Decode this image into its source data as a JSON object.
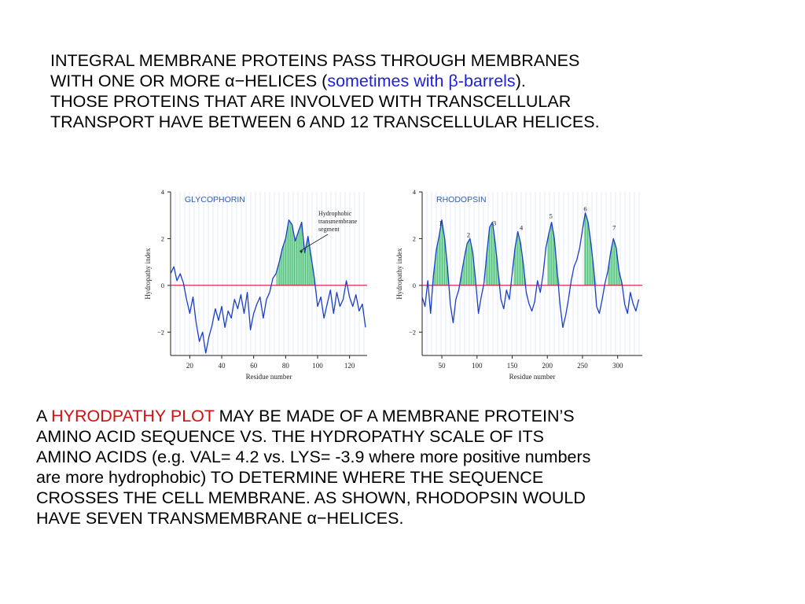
{
  "top_text": {
    "line1": "INTEGRAL MEMBRANE PROTEINS PASS THROUGH MEMBRANES",
    "line2_pre": "WITH ONE OR MORE ",
    "alpha_helices": "α−HELICES",
    "paren_open": " (",
    "sometimes_with": "sometimes with β-barrels",
    "paren_close": ").",
    "line3": "THOSE PROTEINS THAT ARE INVOLVED WITH TRANSCELLULAR",
    "line4": "TRANSPORT HAVE BETWEEN 6 AND 12 TRANSCELLULAR HELICES."
  },
  "bottom_text": {
    "prefix": "A ",
    "highlight": "HYRODPATHY PLOT",
    "line1_rest": " MAY BE MADE OF A MEMBRANE PROTEIN’S",
    "line2": "AMINO ACID SEQUENCE VS. THE HYDROPATHY SCALE OF ITS",
    "line3": "AMINO ACIDS (e.g. VAL= 4.2 vs. LYS= -3.9 where more positive numbers",
    "line4": "are more hydrophobic) TO DETERMINE WHERE THE SEQUENCE",
    "line5": "CROSSES THE CELL MEMBRANE. AS SHOWN, RHODOPSIN WOULD",
    "line6_pre": "HAVE SEVEN TRANSMEMBRANE ",
    "line6_alpha": "α−HELICES."
  },
  "colors": {
    "curve": "#1a3fc8",
    "fill": "#7fd9a0",
    "zero_line": "#d0103a",
    "panel_title": "#2f5fb0",
    "highlight_blue": "#1f1fdc",
    "highlight_red": "#d01010"
  },
  "chart_data": [
    {
      "type": "line",
      "title": "GLYCOPHORIN",
      "xlabel": "Residue number",
      "ylabel": "Hydropathy index",
      "xlim": [
        8,
        131
      ],
      "ylim": [
        -3,
        4
      ],
      "x_ticks": [
        20,
        40,
        60,
        80,
        100,
        120
      ],
      "y_ticks": [
        -2,
        0,
        2,
        4
      ],
      "annotation": {
        "lines": [
          "Hydrophobic",
          "transmembrane",
          "segment"
        ],
        "points_to": [
          80,
          1.8
        ]
      },
      "shaded_regions": [
        [
          74,
          98
        ]
      ],
      "x": [
        8,
        10,
        12,
        14,
        16,
        18,
        20,
        22,
        24,
        26,
        28,
        30,
        32,
        34,
        36,
        38,
        40,
        42,
        44,
        46,
        48,
        50,
        52,
        54,
        56,
        58,
        60,
        62,
        64,
        66,
        68,
        70,
        72,
        74,
        76,
        78,
        80,
        82,
        84,
        86,
        88,
        90,
        92,
        94,
        96,
        98,
        100,
        102,
        104,
        106,
        108,
        110,
        112,
        114,
        116,
        118,
        120,
        122,
        124,
        126,
        128,
        130
      ],
      "y": [
        0.5,
        0.8,
        0.2,
        0.5,
        0.1,
        -0.6,
        -1.2,
        -0.5,
        -1.6,
        -2.4,
        -2.0,
        -2.9,
        -2.2,
        -1.7,
        -1.0,
        -1.5,
        -0.9,
        -1.8,
        -1.1,
        -1.4,
        -0.6,
        -1.0,
        -0.4,
        -1.2,
        -0.3,
        -1.9,
        -1.2,
        -0.8,
        -0.5,
        -1.4,
        -0.6,
        -0.3,
        0.3,
        0.5,
        1.0,
        1.6,
        2.0,
        2.8,
        2.6,
        1.9,
        2.3,
        2.7,
        1.4,
        2.1,
        1.2,
        0.3,
        -0.9,
        -0.5,
        -1.4,
        -0.8,
        -0.2,
        -1.2,
        -0.3,
        -0.9,
        -0.6,
        0.2,
        -0.5,
        -0.9,
        -0.4,
        -1.1,
        -0.8,
        -1.8
      ]
    },
    {
      "type": "line",
      "title": "RHODOPSIN",
      "xlabel": "Residue number",
      "ylabel": "Hydropathy index",
      "xlim": [
        22,
        335
      ],
      "ylim": [
        -3,
        4
      ],
      "x_ticks": [
        50,
        100,
        150,
        200,
        250,
        300
      ],
      "y_ticks": [
        -2,
        0,
        2,
        4
      ],
      "helix_labels": [
        {
          "label": "1",
          "x": 48,
          "y": 2.5
        },
        {
          "label": "2",
          "x": 88,
          "y": 2.0
        },
        {
          "label": "3",
          "x": 125,
          "y": 2.5
        },
        {
          "label": "4",
          "x": 163,
          "y": 2.3
        },
        {
          "label": "5",
          "x": 205,
          "y": 2.8
        },
        {
          "label": "6",
          "x": 254,
          "y": 3.1
        },
        {
          "label": "7",
          "x": 295,
          "y": 2.3
        }
      ],
      "shaded_regions": [
        [
          38,
          60
        ],
        [
          76,
          98
        ],
        [
          112,
          135
        ],
        [
          152,
          172
        ],
        [
          200,
          225
        ],
        [
          252,
          275
        ],
        [
          286,
          308
        ]
      ],
      "x": [
        22,
        26,
        30,
        34,
        38,
        42,
        46,
        50,
        54,
        58,
        62,
        66,
        70,
        74,
        78,
        82,
        86,
        90,
        94,
        98,
        102,
        106,
        110,
        114,
        118,
        122,
        126,
        130,
        134,
        138,
        142,
        146,
        150,
        154,
        158,
        162,
        166,
        170,
        174,
        178,
        182,
        186,
        190,
        194,
        198,
        202,
        206,
        210,
        214,
        218,
        222,
        226,
        230,
        234,
        238,
        242,
        246,
        250,
        254,
        258,
        262,
        266,
        270,
        274,
        278,
        282,
        286,
        290,
        294,
        298,
        302,
        306,
        310,
        314,
        318,
        322,
        326,
        330
      ],
      "y": [
        -0.5,
        -0.9,
        0.2,
        -1.2,
        0.4,
        1.5,
        2.1,
        2.8,
        2.0,
        0.8,
        -0.8,
        -1.6,
        -0.6,
        -0.2,
        0.5,
        1.2,
        1.8,
        2.0,
        1.4,
        0.2,
        -1.2,
        -0.5,
        0.1,
        1.4,
        2.5,
        2.7,
        1.8,
        0.6,
        -0.6,
        -1.0,
        -0.2,
        -0.6,
        0.5,
        1.6,
        2.3,
        1.8,
        0.9,
        -0.3,
        -0.8,
        -1.1,
        -0.7,
        0.2,
        -0.3,
        0.5,
        1.6,
        2.2,
        2.7,
        2.0,
        0.6,
        -0.8,
        -1.8,
        -1.3,
        -0.6,
        0.2,
        0.8,
        1.1,
        1.6,
        2.4,
        3.1,
        2.7,
        1.8,
        0.7,
        -0.9,
        -1.2,
        -0.6,
        0.1,
        0.6,
        1.4,
        2.0,
        1.6,
        0.6,
        0.1,
        -0.8,
        -1.2,
        -0.3,
        -0.8,
        -1.1,
        -0.6
      ]
    }
  ]
}
